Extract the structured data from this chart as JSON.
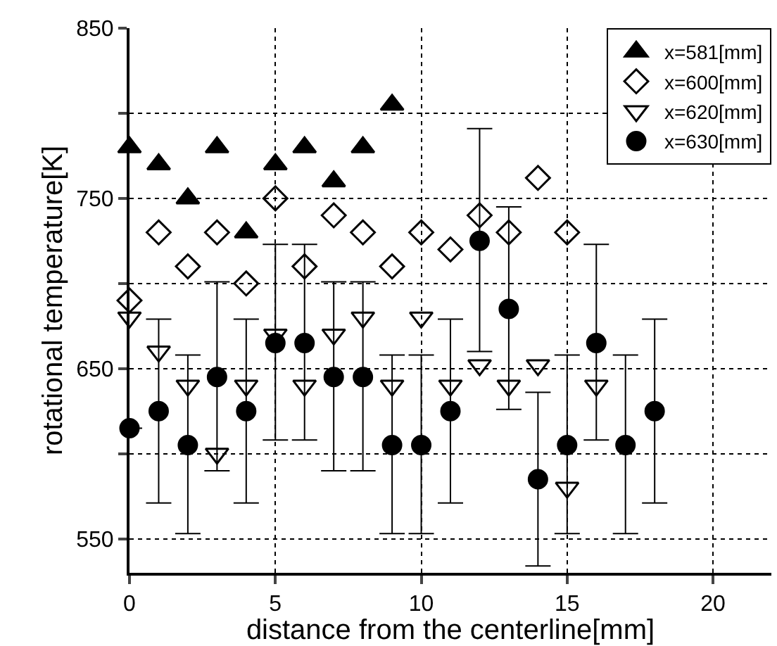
{
  "chart_data": {
    "type": "scatter",
    "xlabel": "distance from the centerline[mm]",
    "ylabel": "rotational temperature[K]",
    "xlim": [
      0,
      22
    ],
    "xticks": [
      0,
      5,
      10,
      15,
      20
    ],
    "ylim": [
      530,
      850
    ],
    "yticks": [
      550,
      {
        "value": 600,
        "label": null
      },
      650,
      {
        "value": 700,
        "label": null
      },
      750,
      {
        "value": 800,
        "label": null
      },
      850
    ],
    "grid": true,
    "legend": "top right",
    "series": [
      {
        "name": "x=581[mm]",
        "color": "#000000",
        "marker": "triangle",
        "x": [
          0,
          1,
          2,
          3,
          4,
          5,
          6,
          7,
          8,
          9
        ],
        "values": [
          780,
          770,
          750,
          780,
          730,
          770,
          780,
          760,
          780,
          805
        ]
      },
      {
        "name": "x=600[mm]",
        "color": "#000000",
        "marker": "diamond",
        "x": [
          0,
          1,
          2,
          3,
          4,
          5,
          6,
          7,
          8,
          9,
          10,
          11,
          12,
          13,
          14,
          15
        ],
        "values": [
          690,
          730,
          710,
          730,
          700,
          750,
          710,
          740,
          730,
          710,
          730,
          720,
          740,
          730,
          762,
          730
        ]
      },
      {
        "name": "x=620[mm]",
        "color": "#000000",
        "marker": "triangle-down",
        "x": [
          0,
          1,
          2,
          3,
          4,
          5,
          6,
          7,
          8,
          9,
          10,
          11,
          12,
          13,
          14,
          15,
          16
        ],
        "values": [
          680,
          660,
          640,
          600,
          640,
          670,
          640,
          670,
          680,
          640,
          680,
          640,
          652,
          640,
          652,
          580,
          640
        ]
      },
      {
        "name": "x=630[mm]",
        "color": "#000000",
        "marker": "circle",
        "x": [
          0,
          1,
          2,
          3,
          4,
          5,
          6,
          7,
          8,
          9,
          10,
          11,
          12,
          13,
          14,
          15,
          16,
          17,
          18
        ],
        "values": [
          615,
          625,
          605,
          645,
          625,
          665,
          665,
          645,
          645,
          605,
          605,
          625,
          725,
          685,
          585,
          605,
          665,
          605,
          625
        ],
        "errors": [
          null,
          [
            571,
            679
          ],
          [
            553,
            658
          ],
          [
            590,
            701
          ],
          [
            571,
            679
          ],
          [
            608,
            723
          ],
          [
            608,
            723
          ],
          [
            590,
            701
          ],
          [
            590,
            701
          ],
          [
            553,
            658
          ],
          [
            553,
            658
          ],
          [
            571,
            679
          ],
          [
            660,
            791
          ],
          [
            626,
            745
          ],
          [
            534,
            636
          ],
          [
            553,
            658
          ],
          [
            608,
            723
          ],
          [
            553,
            658
          ],
          [
            571,
            679
          ]
        ]
      }
    ]
  }
}
